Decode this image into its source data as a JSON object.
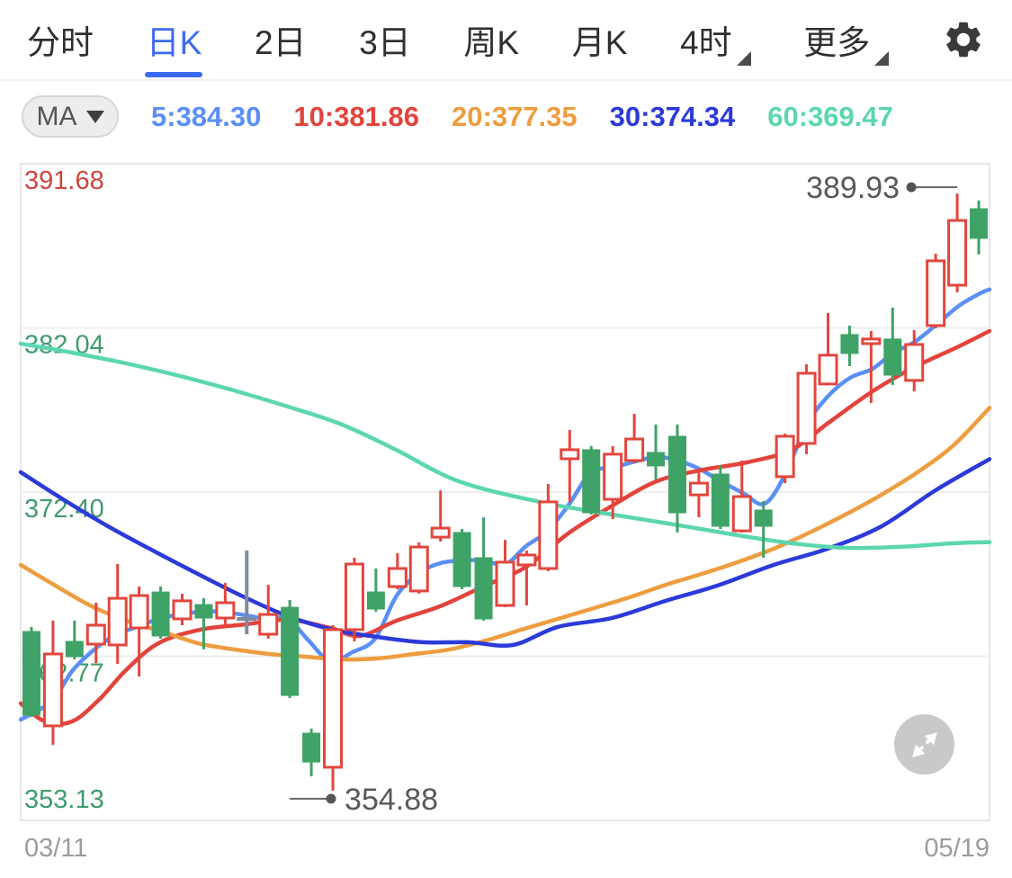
{
  "nav": {
    "tabs": [
      {
        "label": "分时",
        "active": false,
        "dropdown": false
      },
      {
        "label": "日K",
        "active": true,
        "dropdown": false
      },
      {
        "label": "2日",
        "active": false,
        "dropdown": false
      },
      {
        "label": "3日",
        "active": false,
        "dropdown": false
      },
      {
        "label": "周K",
        "active": false,
        "dropdown": false
      },
      {
        "label": "月K",
        "active": false,
        "dropdown": false
      },
      {
        "label": "4时",
        "active": false,
        "dropdown": true
      },
      {
        "label": "更多",
        "active": false,
        "dropdown": true
      }
    ],
    "active_tab": "日K",
    "accent_color": "#3C6AF0"
  },
  "ma": {
    "selector_label": "MA",
    "items": [
      {
        "text": "5:384.30",
        "color": "#5B8FF5"
      },
      {
        "text": "10:381.86",
        "color": "#E2443C"
      },
      {
        "text": "20:377.35",
        "color": "#ED9D3F"
      },
      {
        "text": "30:374.34",
        "color": "#2B3AD9"
      },
      {
        "text": "60:369.47",
        "color": "#5CD6B0"
      }
    ]
  },
  "expand_button": {
    "icon": "expand-arrows-icon",
    "background": "#C9C9C9"
  },
  "chart_data": {
    "type": "candlestick",
    "title": "",
    "x_axis": {
      "left_label": "03/11",
      "right_label": "05/19"
    },
    "y_axis": {
      "gridlines": [
        {
          "value": "391.68",
          "label_color": "#D0453E"
        },
        {
          "value": "382.04",
          "label_color": "#3F9C6D"
        },
        {
          "value": "372.40",
          "label_color": "#3F9C6D"
        },
        {
          "value": "362.77",
          "label_color": "#3F9C6D"
        },
        {
          "value": "353.13",
          "label_color": "#3F9C6D"
        }
      ]
    },
    "colors": {
      "bull": "#E2463D",
      "bear": "#3FA266",
      "doji": "#7D8AA0",
      "grid": "#EDEDED",
      "border": "#E8E8E8",
      "annotation_text": "#58595B",
      "annotation_line": "#666666",
      "date": "#9B9B9B"
    },
    "annotations": {
      "high": {
        "label": "389.93",
        "candle_index": 43
      },
      "low": {
        "label": "354.88",
        "candle_index": 14
      }
    },
    "candles": [
      [
        364.22,
        364.49,
        359.21,
        359.31
      ],
      [
        358.68,
        364.86,
        357.57,
        362.9
      ],
      [
        363.64,
        364.86,
        362.59,
        362.74
      ],
      [
        363.48,
        365.91,
        362.37,
        364.59
      ],
      [
        363.43,
        368.18,
        362.32,
        366.17
      ],
      [
        364.43,
        366.86,
        361.58,
        366.33
      ],
      [
        366.54,
        366.86,
        363.8,
        363.96
      ],
      [
        364.96,
        366.44,
        364.59,
        366.02
      ],
      [
        365.8,
        366.17,
        363.17,
        365.01
      ],
      [
        365.01,
        367.07,
        364.49,
        365.91
      ],
      [
        364.96,
        368.97,
        364.06,
        364.96
      ],
      [
        364.06,
        366.96,
        363.8,
        365.22
      ],
      [
        365.64,
        366.07,
        360.31,
        360.47
      ],
      [
        358.25,
        358.52,
        355.72,
        356.56
      ],
      [
        356.25,
        364.59,
        354.88,
        364.33
      ],
      [
        364.33,
        368.55,
        363.64,
        368.18
      ],
      [
        366.54,
        367.92,
        365.38,
        365.54
      ],
      [
        366.86,
        368.82,
        366.7,
        367.92
      ],
      [
        366.6,
        369.45,
        366.44,
        369.18
      ],
      [
        369.76,
        372.5,
        369.5,
        370.29
      ],
      [
        370.03,
        370.24,
        366.7,
        366.86
      ],
      [
        368.55,
        370.92,
        364.86,
        364.96
      ],
      [
        365.75,
        369.6,
        365.65,
        368.29
      ],
      [
        368.13,
        368.97,
        365.75,
        368.71
      ],
      [
        367.92,
        372.88,
        367.76,
        371.83
      ],
      [
        374.36,
        376.05,
        371.83,
        374.89
      ],
      [
        374.89,
        375.1,
        371.09,
        371.19
      ],
      [
        371.98,
        375.1,
        370.82,
        374.63
      ],
      [
        374.26,
        377.0,
        374.1,
        375.52
      ],
      [
        374.73,
        376.37,
        373.15,
        373.94
      ],
      [
        375.68,
        376.37,
        370.03,
        371.19
      ],
      [
        372.24,
        373.56,
        370.92,
        372.93
      ],
      [
        373.46,
        373.99,
        370.24,
        370.4
      ],
      [
        370.13,
        374.26,
        370.03,
        372.14
      ],
      [
        371.35,
        371.88,
        368.55,
        370.4
      ],
      [
        373.31,
        375.84,
        372.93,
        375.68
      ],
      [
        375.26,
        379.91,
        374.63,
        379.38
      ],
      [
        378.75,
        382.92,
        378.69,
        380.44
      ],
      [
        381.65,
        382.18,
        379.8,
        380.54
      ],
      [
        381.12,
        381.86,
        377.63,
        381.39
      ],
      [
        381.39,
        383.24,
        378.69,
        379.27
      ],
      [
        378.96,
        381.91,
        378.32,
        381.07
      ],
      [
        382.18,
        386.4,
        382.02,
        385.98
      ],
      [
        384.55,
        389.93,
        384.13,
        388.35
      ],
      [
        389.04,
        389.52,
        386.35,
        387.3
      ]
    ],
    "ma_lines": [
      {
        "name": "MA5",
        "color": "#5B8FF5",
        "points": [
          [
            23,
            359.05
          ],
          [
            57,
            360.11
          ],
          [
            81,
            361.95
          ],
          [
            105,
            363.17
          ],
          [
            128,
            364.01
          ],
          [
            152,
            364.49
          ],
          [
            176,
            364.96
          ],
          [
            199,
            365.22
          ],
          [
            223,
            365.38
          ],
          [
            247,
            365.38
          ],
          [
            273,
            365.17
          ],
          [
            296,
            364.96
          ],
          [
            320,
            364.96
          ],
          [
            343,
            363.69
          ],
          [
            367,
            362.48
          ],
          [
            392,
            363.01
          ],
          [
            417,
            363.8
          ],
          [
            441,
            366.33
          ],
          [
            466,
            367.65
          ],
          [
            489,
            368.23
          ],
          [
            513,
            368.39
          ],
          [
            537,
            368.39
          ],
          [
            562,
            368.18
          ],
          [
            585,
            369.24
          ],
          [
            609,
            370.13
          ],
          [
            633,
            371.72
          ],
          [
            657,
            373.57
          ],
          [
            681,
            373.83
          ],
          [
            706,
            374.2
          ],
          [
            730,
            374.47
          ],
          [
            753,
            374.26
          ],
          [
            777,
            373.78
          ],
          [
            801,
            373.04
          ],
          [
            826,
            372.35
          ],
          [
            850,
            371.72
          ],
          [
            873,
            373.46
          ],
          [
            897,
            376.37
          ],
          [
            921,
            378.06
          ],
          [
            945,
            379.11
          ],
          [
            970,
            379.64
          ],
          [
            992,
            380.54
          ],
          [
            1017,
            381.23
          ],
          [
            1042,
            382.28
          ],
          [
            1066,
            383.34
          ],
          [
            1090,
            384.08
          ],
          [
            1100,
            384.3
          ]
        ]
      },
      {
        "name": "MA10",
        "color": "#E2443C",
        "points": [
          [
            23,
            360.0
          ],
          [
            50,
            358.94
          ],
          [
            80,
            358.94
          ],
          [
            110,
            360.21
          ],
          [
            140,
            361.95
          ],
          [
            176,
            363.53
          ],
          [
            223,
            364.33
          ],
          [
            273,
            364.64
          ],
          [
            320,
            364.91
          ],
          [
            367,
            364.43
          ],
          [
            400,
            363.96
          ],
          [
            441,
            364.86
          ],
          [
            489,
            365.7
          ],
          [
            537,
            366.86
          ],
          [
            585,
            368.02
          ],
          [
            633,
            370.03
          ],
          [
            681,
            371.62
          ],
          [
            730,
            373.04
          ],
          [
            780,
            373.7
          ],
          [
            830,
            374.15
          ],
          [
            880,
            374.89
          ],
          [
            921,
            376.47
          ],
          [
            970,
            378.32
          ],
          [
            1017,
            379.75
          ],
          [
            1066,
            380.96
          ],
          [
            1100,
            381.86
          ]
        ]
      },
      {
        "name": "MA20",
        "color": "#ED9D3F",
        "points": [
          [
            23,
            368.13
          ],
          [
            60,
            366.96
          ],
          [
            100,
            365.75
          ],
          [
            140,
            364.86
          ],
          [
            180,
            364.22
          ],
          [
            220,
            363.53
          ],
          [
            260,
            363.17
          ],
          [
            300,
            362.9
          ],
          [
            340,
            362.74
          ],
          [
            380,
            362.58
          ],
          [
            420,
            362.64
          ],
          [
            460,
            362.9
          ],
          [
            500,
            363.17
          ],
          [
            540,
            363.69
          ],
          [
            580,
            364.33
          ],
          [
            620,
            364.96
          ],
          [
            660,
            365.59
          ],
          [
            700,
            366.23
          ],
          [
            740,
            366.96
          ],
          [
            780,
            367.6
          ],
          [
            820,
            368.29
          ],
          [
            860,
            369.08
          ],
          [
            900,
            370.03
          ],
          [
            940,
            371.09
          ],
          [
            980,
            372.25
          ],
          [
            1020,
            373.57
          ],
          [
            1060,
            375.15
          ],
          [
            1100,
            377.35
          ]
        ]
      },
      {
        "name": "MA30",
        "color": "#2B3AD9",
        "points": [
          [
            23,
            373.57
          ],
          [
            70,
            371.98
          ],
          [
            120,
            370.4
          ],
          [
            170,
            368.97
          ],
          [
            220,
            367.6
          ],
          [
            270,
            366.28
          ],
          [
            320,
            365.12
          ],
          [
            370,
            364.33
          ],
          [
            420,
            363.9
          ],
          [
            470,
            363.59
          ],
          [
            520,
            363.59
          ],
          [
            570,
            363.43
          ],
          [
            620,
            364.49
          ],
          [
            680,
            365.01
          ],
          [
            740,
            366.02
          ],
          [
            800,
            366.96
          ],
          [
            860,
            368.13
          ],
          [
            920,
            369.08
          ],
          [
            980,
            370.4
          ],
          [
            1040,
            372.51
          ],
          [
            1100,
            374.34
          ]
        ]
      },
      {
        "name": "MA60",
        "color": "#5CD6B0",
        "points": [
          [
            23,
            381.12
          ],
          [
            80,
            380.59
          ],
          [
            140,
            379.96
          ],
          [
            200,
            379.22
          ],
          [
            260,
            378.37
          ],
          [
            320,
            377.42
          ],
          [
            380,
            376.37
          ],
          [
            440,
            374.89
          ],
          [
            510,
            373.04
          ],
          [
            600,
            371.83
          ],
          [
            680,
            371.09
          ],
          [
            750,
            370.5
          ],
          [
            820,
            369.87
          ],
          [
            880,
            369.4
          ],
          [
            940,
            369.13
          ],
          [
            1000,
            369.19
          ],
          [
            1060,
            369.4
          ],
          [
            1100,
            369.47
          ]
        ]
      }
    ]
  }
}
